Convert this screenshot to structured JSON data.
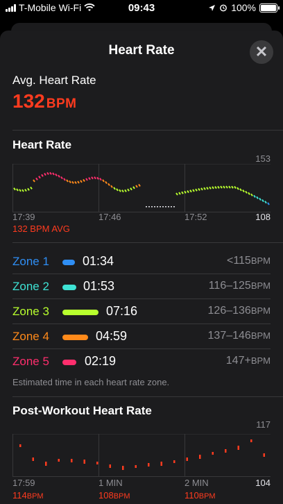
{
  "status": {
    "carrier": "T-Mobile Wi-Fi",
    "time": "09:43",
    "battery": "100%"
  },
  "sheet": {
    "title": "Heart Rate",
    "close_icon": "close-icon"
  },
  "summary": {
    "avg_label": "Avg. Heart Rate",
    "avg_value": "132",
    "avg_unit": "BPM"
  },
  "heart_rate": {
    "title": "Heart Rate",
    "max_label": "153",
    "min_label": "108",
    "times": [
      "17:39",
      "17:46",
      "17:52"
    ],
    "avg_caption": "132 BPM AVG"
  },
  "zones": {
    "items": [
      {
        "name": "Zone 1",
        "time": "01:34",
        "range": "<115",
        "unit": "BPM",
        "color": "#2f8ef4"
      },
      {
        "name": "Zone 2",
        "time": "01:53",
        "range": "116–125",
        "unit": "BPM",
        "color": "#3ee2d4"
      },
      {
        "name": "Zone 3",
        "time": "07:16",
        "range": "126–136",
        "unit": "BPM",
        "color": "#b8ff2e"
      },
      {
        "name": "Zone 4",
        "time": "04:59",
        "range": "137–146",
        "unit": "BPM",
        "color": "#ff8a1a"
      },
      {
        "name": "Zone 5",
        "time": "02:19",
        "range": "147+",
        "unit": "BPM",
        "color": "#ff2e6d"
      }
    ],
    "caption": "Estimated time in each heart rate zone."
  },
  "post_workout": {
    "title": "Post-Workout Heart Rate",
    "max_label": "117",
    "min_label": "104",
    "ticks": [
      "17:59",
      "1 MIN",
      "2 MIN"
    ],
    "values": [
      {
        "value": "114",
        "unit": "BPM"
      },
      {
        "value": "108",
        "unit": "BPM"
      },
      {
        "value": "110",
        "unit": "BPM"
      }
    ]
  },
  "colors": {
    "accent_red": "#ff3b1f",
    "sheet_bg": "#1c1c1e",
    "separator": "#38383a"
  }
}
